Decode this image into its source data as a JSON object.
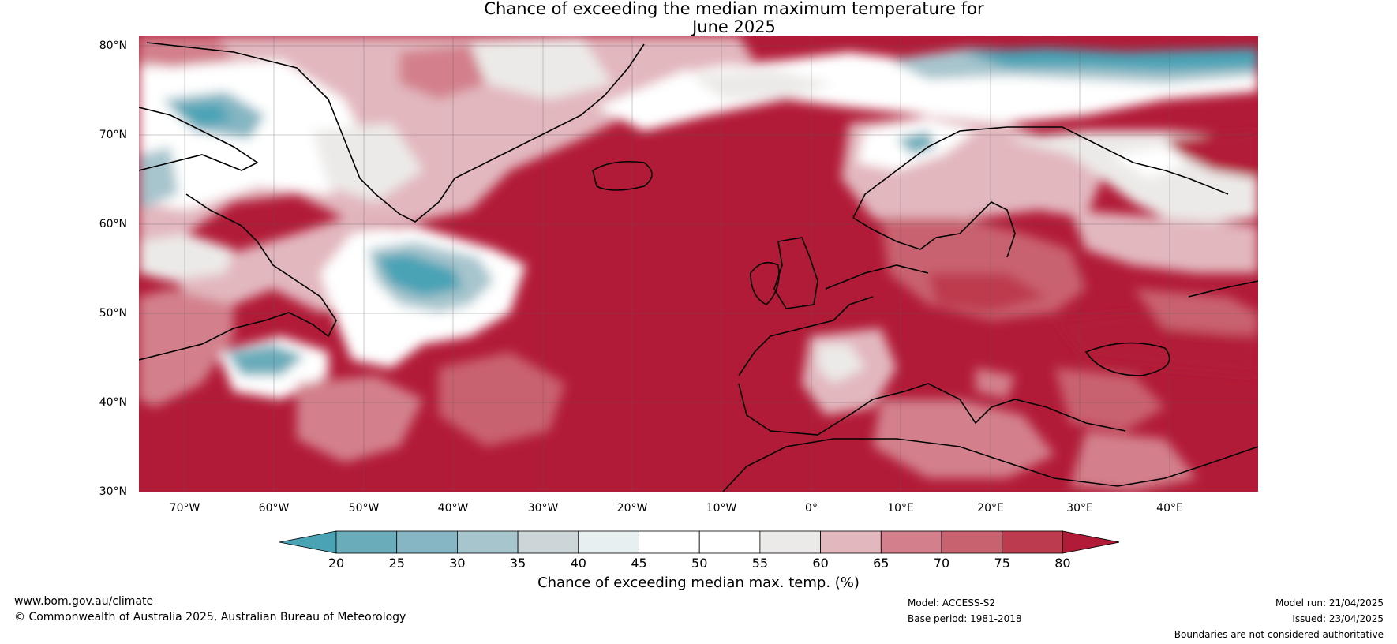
{
  "title_line1": "Chance of exceeding the median maximum temperature for",
  "title_line2": "June 2025",
  "lat_labels": [
    "80°N",
    "70°N",
    "60°N",
    "50°N",
    "40°N",
    "30°N"
  ],
  "lon_labels": [
    "70°W",
    "60°W",
    "50°W",
    "40°W",
    "30°W",
    "20°W",
    "10°W",
    "0°",
    "10°E",
    "20°E",
    "30°E",
    "40°E"
  ],
  "colorbar": {
    "ticks": [
      "20",
      "25",
      "30",
      "35",
      "40",
      "45",
      "50",
      "55",
      "60",
      "65",
      "70",
      "75",
      "80"
    ],
    "colors": [
      "#4aa3b5",
      "#6aacba",
      "#86b6c3",
      "#a7c5cd",
      "#ccd6d8",
      "#e8eff1",
      "#ffffff",
      "#ffffff",
      "#eceae8",
      "#e2b7be",
      "#d3808c",
      "#c9626f",
      "#bd3b4e",
      "#b21b38"
    ],
    "label": "Chance of exceeding median max. temp. (%)"
  },
  "footer": {
    "website": "www.bom.gov.au/climate",
    "copyright": "© Commonwealth of Australia 2025, Australian Bureau of Meteorology",
    "model": "Model: ACCESS-S2",
    "base_period": "Base period: 1981-2018",
    "model_run": "Model run: 21/04/2025",
    "issued": "Issued: 23/04/2025",
    "disclaimer": "Boundaries are not considered authoritative"
  }
}
